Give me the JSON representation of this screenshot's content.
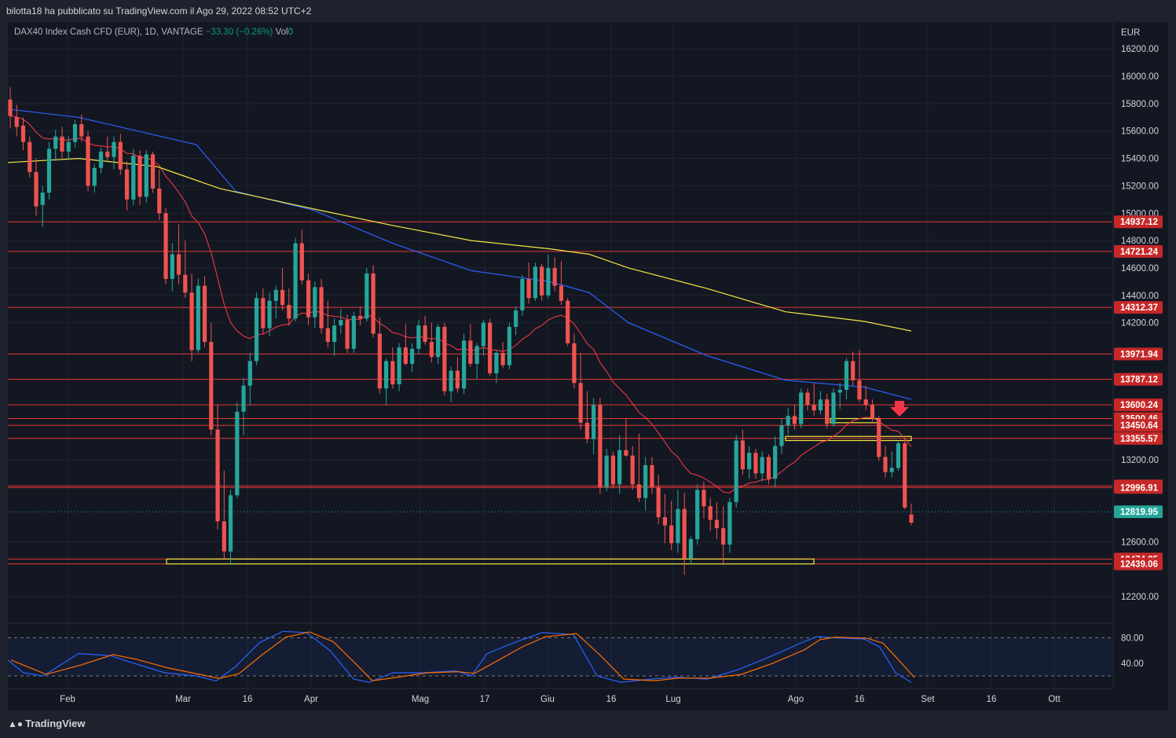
{
  "header": {
    "publisher": "bilotta18 ha pubblicato su TradingView.com il Ago 29, 2022 08:52 UTC+2"
  },
  "legend": {
    "symbol": "DAX40 Index Cash CFD (EUR), 1D, VANTAGE",
    "change": "−33.30 (−0.26%)",
    "vol_label": "Vol",
    "vol_value": "0"
  },
  "footer": {
    "brand": "TradingView"
  },
  "colors": {
    "up": "#26a69a",
    "down": "#ef5350",
    "ema20": "#f23645",
    "ma100": "#2962ff",
    "ma200": "#f5e642",
    "level": "#e53935",
    "zone": "#f5e642",
    "stoch_k": "#2962ff",
    "stoch_d": "#ff6d00"
  },
  "chart_data": {
    "type": "candlestick",
    "currency": "EUR",
    "ylim": [
      12000,
      16400
    ],
    "y_ticks": [
      12200,
      12600,
      13200,
      14200,
      14400,
      14600,
      14800,
      15000,
      15200,
      15400,
      15600,
      15800,
      16000,
      16200
    ],
    "x_labels": [
      "Feb",
      "Mar",
      "16",
      "Apr",
      "Mag",
      "17",
      "Giu",
      "16",
      "Lug",
      "Ago",
      "16",
      "Set",
      "16",
      "Ott"
    ],
    "price_levels": [
      "14937.12",
      "14721.24",
      "14312.37",
      "13971.94",
      "13787.12",
      "13600.24",
      "13500.46",
      "13450.64",
      "13355.57",
      "13008.25",
      "12996.91",
      "12474.85",
      "12439.06"
    ],
    "last_price": "12819.95",
    "stoch_ticks": [
      "80.00",
      "40.00"
    ],
    "ohlc": [
      [
        15830,
        15920,
        15620,
        15710
      ],
      [
        15700,
        15790,
        15560,
        15630
      ],
      [
        15640,
        15700,
        15460,
        15520
      ],
      [
        15520,
        15560,
        15260,
        15300
      ],
      [
        15300,
        15400,
        14980,
        15050
      ],
      [
        15060,
        15200,
        14900,
        15150
      ],
      [
        15150,
        15520,
        15100,
        15470
      ],
      [
        15470,
        15610,
        15380,
        15560
      ],
      [
        15560,
        15630,
        15400,
        15450
      ],
      [
        15450,
        15560,
        15390,
        15520
      ],
      [
        15520,
        15680,
        15480,
        15650
      ],
      [
        15650,
        15720,
        15520,
        15560
      ],
      [
        15560,
        15600,
        15160,
        15200
      ],
      [
        15200,
        15360,
        15150,
        15330
      ],
      [
        15330,
        15480,
        15290,
        15450
      ],
      [
        15450,
        15560,
        15380,
        15410
      ],
      [
        15410,
        15560,
        15320,
        15520
      ],
      [
        15520,
        15580,
        15280,
        15320
      ],
      [
        15320,
        15380,
        15020,
        15100
      ],
      [
        15100,
        15470,
        15060,
        15420
      ],
      [
        15420,
        15460,
        15060,
        15120
      ],
      [
        15120,
        15460,
        15080,
        15430
      ],
      [
        15430,
        15450,
        15150,
        15180
      ],
      [
        15180,
        15320,
        14950,
        15000
      ],
      [
        15000,
        15040,
        14480,
        14520
      ],
      [
        14520,
        14780,
        14430,
        14700
      ],
      [
        14700,
        14920,
        14480,
        14550
      ],
      [
        14550,
        14800,
        14380,
        14420
      ],
      [
        14420,
        14560,
        13920,
        14000
      ],
      [
        14000,
        14520,
        13980,
        14470
      ],
      [
        14470,
        14540,
        14020,
        14060
      ],
      [
        14060,
        14200,
        13380,
        13420
      ],
      [
        13420,
        13600,
        12690,
        12750
      ],
      [
        12750,
        13120,
        12480,
        12530
      ],
      [
        12530,
        12980,
        12440,
        12940
      ],
      [
        12940,
        13620,
        12920,
        13550
      ],
      [
        13550,
        13800,
        13380,
        13740
      ],
      [
        13740,
        13980,
        13600,
        13920
      ],
      [
        13920,
        14420,
        13890,
        14380
      ],
      [
        14380,
        14450,
        14120,
        14160
      ],
      [
        14160,
        14420,
        14100,
        14360
      ],
      [
        14360,
        14470,
        14230,
        14440
      ],
      [
        14440,
        14600,
        14290,
        14330
      ],
      [
        14330,
        14450,
        14180,
        14230
      ],
      [
        14230,
        14820,
        14210,
        14780
      ],
      [
        14780,
        14880,
        14480,
        14510
      ],
      [
        14510,
        14560,
        14180,
        14240
      ],
      [
        14240,
        14500,
        14160,
        14460
      ],
      [
        14460,
        14520,
        14120,
        14160
      ],
      [
        14160,
        14360,
        14020,
        14060
      ],
      [
        14060,
        14230,
        13960,
        14180
      ],
      [
        14180,
        14300,
        14120,
        14220
      ],
      [
        14220,
        14260,
        13980,
        14010
      ],
      [
        14010,
        14280,
        13980,
        14250
      ],
      [
        14250,
        14320,
        14180,
        14230
      ],
      [
        14230,
        14600,
        14210,
        14560
      ],
      [
        14560,
        14620,
        14090,
        14120
      ],
      [
        14120,
        14240,
        13680,
        13720
      ],
      [
        13720,
        13940,
        13600,
        13920
      ],
      [
        13920,
        14020,
        13720,
        13750
      ],
      [
        13750,
        14050,
        13700,
        14020
      ],
      [
        14020,
        14190,
        13890,
        13900
      ],
      [
        13900,
        14050,
        13840,
        14010
      ],
      [
        14010,
        14220,
        13970,
        14180
      ],
      [
        14180,
        14250,
        14040,
        14060
      ],
      [
        14060,
        14200,
        13910,
        13950
      ],
      [
        13950,
        14190,
        13900,
        14170
      ],
      [
        14170,
        14200,
        13670,
        13700
      ],
      [
        13700,
        13880,
        13620,
        13850
      ],
      [
        13850,
        13950,
        13690,
        13720
      ],
      [
        13720,
        14120,
        13680,
        14070
      ],
      [
        14070,
        14190,
        13880,
        13900
      ],
      [
        13900,
        14050,
        13790,
        14030
      ],
      [
        14030,
        14220,
        13960,
        14200
      ],
      [
        14200,
        14230,
        13810,
        13830
      ],
      [
        13830,
        14000,
        13760,
        13980
      ],
      [
        13980,
        14060,
        13870,
        13890
      ],
      [
        13890,
        14200,
        13860,
        14170
      ],
      [
        14170,
        14320,
        14110,
        14290
      ],
      [
        14290,
        14550,
        14250,
        14520
      ],
      [
        14520,
        14640,
        14340,
        14380
      ],
      [
        14380,
        14640,
        14360,
        14610
      ],
      [
        14610,
        14630,
        14360,
        14400
      ],
      [
        14400,
        14700,
        14380,
        14600
      ],
      [
        14600,
        14680,
        14430,
        14470
      ],
      [
        14470,
        14650,
        14330,
        14360
      ],
      [
        14360,
        14380,
        14030,
        14050
      ],
      [
        14050,
        14120,
        13720,
        13760
      ],
      [
        13760,
        13980,
        13420,
        13470
      ],
      [
        13470,
        13700,
        13320,
        13350
      ],
      [
        13350,
        13650,
        13240,
        13600
      ],
      [
        13600,
        13650,
        12950,
        13000
      ],
      [
        13000,
        13280,
        12970,
        13230
      ],
      [
        13230,
        13260,
        12990,
        13020
      ],
      [
        13020,
        13380,
        12950,
        13270
      ],
      [
        13270,
        13500,
        13220,
        13230
      ],
      [
        13230,
        13300,
        12980,
        13020
      ],
      [
        13020,
        13390,
        12890,
        12920
      ],
      [
        12920,
        13220,
        12830,
        13160
      ],
      [
        13160,
        13220,
        12950,
        13000
      ],
      [
        13000,
        13090,
        12730,
        12780
      ],
      [
        12780,
        12950,
        12590,
        12720
      ],
      [
        12720,
        12900,
        12540,
        12590
      ],
      [
        12590,
        12980,
        12520,
        12840
      ],
      [
        12840,
        12960,
        12360,
        12480
      ],
      [
        12480,
        12640,
        12440,
        12620
      ],
      [
        12620,
        13020,
        12580,
        12980
      ],
      [
        12980,
        13040,
        12770,
        12860
      ],
      [
        12860,
        12920,
        12680,
        12760
      ],
      [
        12760,
        12890,
        12620,
        12700
      ],
      [
        12700,
        12860,
        12430,
        12580
      ],
      [
        12580,
        12920,
        12520,
        12890
      ],
      [
        12890,
        13380,
        12850,
        13340
      ],
      [
        13340,
        13420,
        13090,
        13130
      ],
      [
        13130,
        13300,
        13060,
        13250
      ],
      [
        13250,
        13280,
        13060,
        13100
      ],
      [
        13100,
        13260,
        13040,
        13220
      ],
      [
        13220,
        13240,
        13020,
        13060
      ],
      [
        13060,
        13370,
        13000,
        13300
      ],
      [
        13300,
        13500,
        13240,
        13450
      ],
      [
        13450,
        13580,
        13380,
        13520
      ],
      [
        13520,
        13600,
        13420,
        13460
      ],
      [
        13460,
        13720,
        13430,
        13690
      ],
      [
        13690,
        13720,
        13560,
        13600
      ],
      [
        13600,
        13760,
        13520,
        13560
      ],
      [
        13560,
        13700,
        13530,
        13640
      ],
      [
        13640,
        13680,
        13430,
        13460
      ],
      [
        13460,
        13720,
        13440,
        13690
      ],
      [
        13690,
        13760,
        13570,
        13710
      ],
      [
        13710,
        13940,
        13640,
        13920
      ],
      [
        13920,
        13990,
        13740,
        13780
      ],
      [
        13780,
        14000,
        13620,
        13640
      ],
      [
        13640,
        13740,
        13560,
        13600
      ],
      [
        13600,
        13640,
        13480,
        13500
      ],
      [
        13500,
        13520,
        13190,
        13220
      ],
      [
        13220,
        13300,
        13070,
        13110
      ],
      [
        13110,
        13260,
        13070,
        13140
      ],
      [
        13140,
        13340,
        13120,
        13320
      ],
      [
        13320,
        13350,
        12840,
        12850
      ],
      [
        12800,
        12880,
        12720,
        12740
      ]
    ],
    "overlays": [
      "EMA 20",
      "MA 100",
      "MA 200"
    ],
    "indicator": "Stochastic"
  }
}
